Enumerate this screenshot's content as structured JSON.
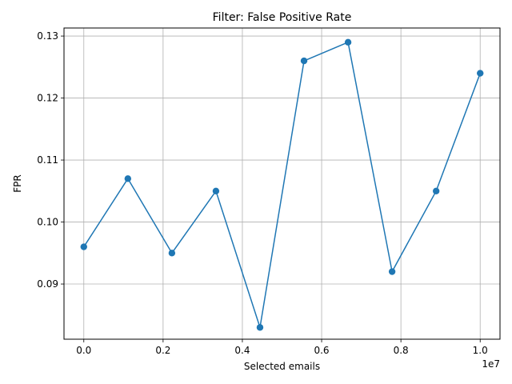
{
  "chart_data": {
    "type": "line",
    "title": "Filter: False Positive Rate",
    "xlabel": "Selected emails",
    "ylabel": "FPR",
    "x_offset_text": "1e7",
    "x_scale_factor": 10000000,
    "xlim": [
      -500000,
      10500000
    ],
    "ylim": [
      0.0811,
      0.1313
    ],
    "x_ticks": [
      0,
      2000000,
      4000000,
      6000000,
      8000000,
      10000000
    ],
    "x_tick_labels": [
      "0.0",
      "0.2",
      "0.4",
      "0.6",
      "0.8",
      "1.0"
    ],
    "y_ticks": [
      0.09,
      0.1,
      0.11,
      0.12,
      0.13
    ],
    "y_tick_labels": [
      "0.09",
      "0.10",
      "0.11",
      "0.12",
      "0.13"
    ],
    "grid": true,
    "color": "#1f77b4",
    "series": [
      {
        "x": [
          0,
          1111111,
          2222222,
          3333333,
          4444444,
          5555556,
          6666667,
          7777778,
          8888889,
          10000000
        ],
        "y": [
          0.096,
          0.107,
          0.095,
          0.105,
          0.083,
          0.126,
          0.129,
          0.092,
          0.105,
          0.124
        ]
      }
    ]
  }
}
